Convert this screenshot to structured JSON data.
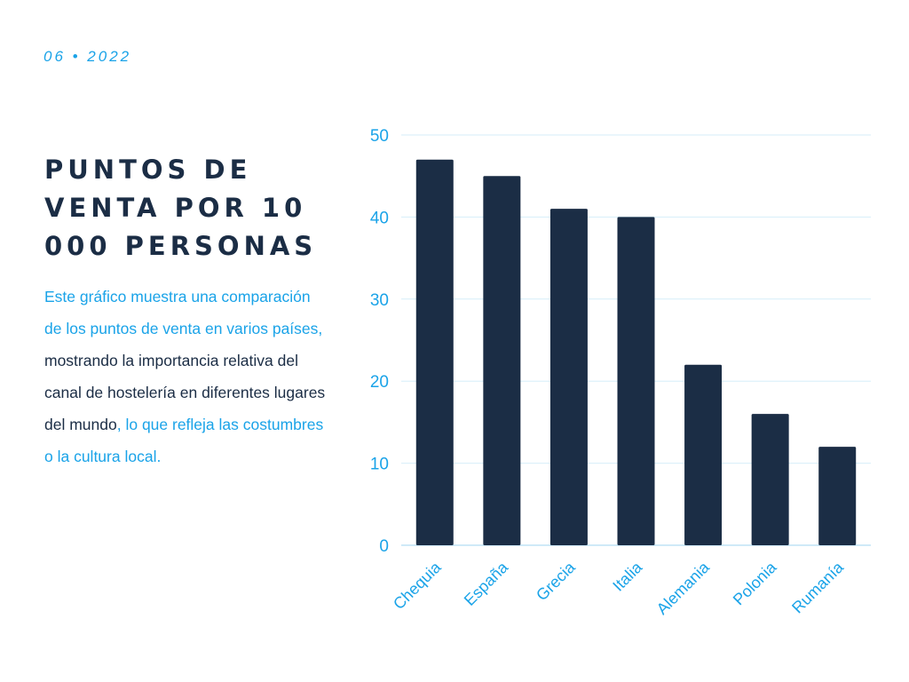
{
  "header": {
    "date": "06 • 2022"
  },
  "title": "PUNTOS DE VENTA POR 10 000 PERSONAS",
  "description": {
    "part1": "Este gráfico muestra una comparación de los puntos de venta en varios países,",
    "part2": " mostrando la importancia relativa del canal de hostelería en diferentes lugares del mundo",
    "part3": ", lo que refleja las costumbres o la cultura local."
  },
  "colors": {
    "accent": "#1aa3e8",
    "dark": "#1b2d45",
    "grid": "#d6eef9"
  },
  "chart_data": {
    "type": "bar",
    "categories": [
      "Chequia",
      "España",
      "Grecia",
      "Italia",
      "Alemania",
      "Polonia",
      "Rumanía"
    ],
    "values": [
      47,
      45,
      41,
      40,
      22,
      16,
      12
    ],
    "ylim": [
      0,
      50
    ],
    "yticks": [
      0,
      10,
      20,
      30,
      40,
      50
    ],
    "grid": true,
    "xlabel": "",
    "ylabel": ""
  }
}
